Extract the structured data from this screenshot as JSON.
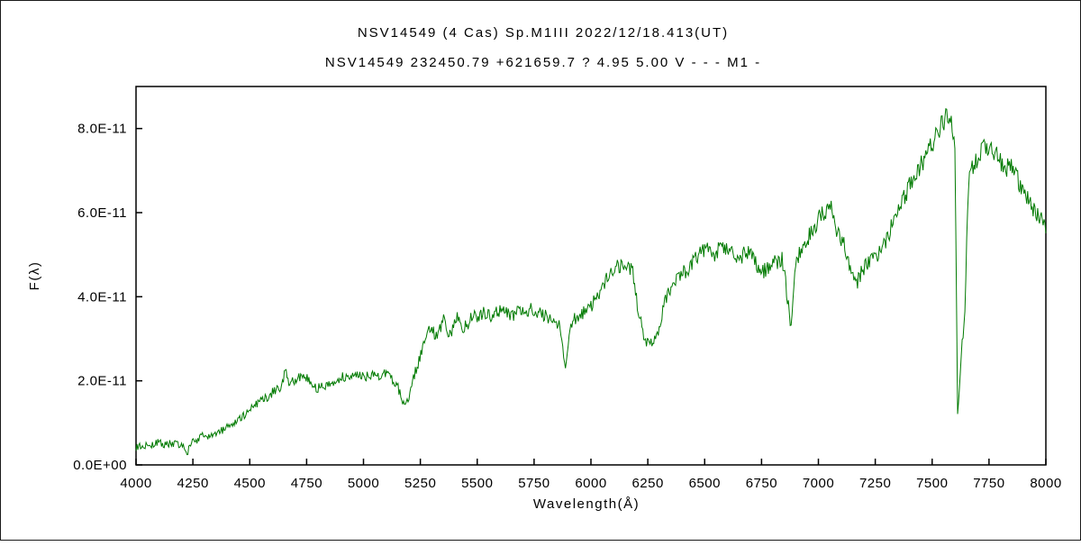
{
  "page": {
    "background": "#ffffff",
    "border_color": "#1a1a1a"
  },
  "header": {
    "title_line1": "NSV14549 (4 Cas)   Sp.M1III   2022/12/18.413(UT)",
    "title_line2": "NSV14549 232450.79 +621659.7 ? 4.95 5.00 V - - - M1 -"
  },
  "chart_data": {
    "type": "line",
    "title": "NSV14549 (4 Cas) Sp.M1III 2022/12/18.413(UT)",
    "xlabel": "Wavelength(Å)",
    "ylabel": "F(λ)",
    "xlim": [
      4000,
      8000
    ],
    "ylim": [
      0,
      9
    ],
    "flux_unit_scale": "1e-11",
    "x_ticks": [
      4000,
      4250,
      4500,
      4750,
      5000,
      5250,
      5500,
      5750,
      6000,
      6250,
      6500,
      6750,
      7000,
      7250,
      7500,
      7750,
      8000
    ],
    "y_ticks": [
      0,
      2,
      4,
      6,
      8
    ],
    "y_tick_labels": [
      "0.0E+00",
      "2.0E-11",
      "4.0E-11",
      "6.0E-11",
      "8.0E-11"
    ],
    "grid": false,
    "legend": "none",
    "line_color": "#007a00",
    "axis_color": "#000000",
    "noise_seed": 20221218,
    "noise_amplitude": 0.24,
    "sample_step_angstrom": 4,
    "series": [
      {
        "name": "NSV14549 flux spectrum",
        "points": [
          [
            4000,
            0.42
          ],
          [
            4030,
            0.48
          ],
          [
            4060,
            0.44
          ],
          [
            4090,
            0.55
          ],
          [
            4120,
            0.48
          ],
          [
            4150,
            0.52
          ],
          [
            4180,
            0.5
          ],
          [
            4210,
            0.45
          ],
          [
            4225,
            0.26
          ],
          [
            4240,
            0.52
          ],
          [
            4270,
            0.6
          ],
          [
            4300,
            0.72
          ],
          [
            4330,
            0.68
          ],
          [
            4360,
            0.75
          ],
          [
            4400,
            0.92
          ],
          [
            4440,
            1.05
          ],
          [
            4480,
            1.22
          ],
          [
            4520,
            1.38
          ],
          [
            4560,
            1.55
          ],
          [
            4600,
            1.72
          ],
          [
            4640,
            1.88
          ],
          [
            4655,
            2.25
          ],
          [
            4670,
            1.95
          ],
          [
            4700,
            2.0
          ],
          [
            4730,
            2.1
          ],
          [
            4760,
            2.05
          ],
          [
            4790,
            1.8
          ],
          [
            4820,
            1.92
          ],
          [
            4850,
            1.88
          ],
          [
            4880,
            2.02
          ],
          [
            4910,
            2.1
          ],
          [
            4940,
            2.05
          ],
          [
            4970,
            2.12
          ],
          [
            5000,
            2.08
          ],
          [
            5030,
            2.15
          ],
          [
            5060,
            2.1
          ],
          [
            5090,
            2.18
          ],
          [
            5120,
            2.05
          ],
          [
            5150,
            1.9
          ],
          [
            5175,
            1.42
          ],
          [
            5200,
            1.6
          ],
          [
            5230,
            2.25
          ],
          [
            5260,
            2.8
          ],
          [
            5290,
            3.3
          ],
          [
            5320,
            3.05
          ],
          [
            5350,
            3.45
          ],
          [
            5380,
            3.1
          ],
          [
            5410,
            3.5
          ],
          [
            5440,
            3.25
          ],
          [
            5470,
            3.45
          ],
          [
            5500,
            3.55
          ],
          [
            5530,
            3.62
          ],
          [
            5560,
            3.5
          ],
          [
            5590,
            3.68
          ],
          [
            5620,
            3.72
          ],
          [
            5650,
            3.55
          ],
          [
            5680,
            3.62
          ],
          [
            5710,
            3.58
          ],
          [
            5740,
            3.7
          ],
          [
            5770,
            3.62
          ],
          [
            5800,
            3.55
          ],
          [
            5830,
            3.42
          ],
          [
            5860,
            3.3
          ],
          [
            5890,
            2.35
          ],
          [
            5915,
            3.42
          ],
          [
            5940,
            3.55
          ],
          [
            5970,
            3.62
          ],
          [
            6000,
            3.78
          ],
          [
            6030,
            4.05
          ],
          [
            6060,
            4.35
          ],
          [
            6090,
            4.62
          ],
          [
            6120,
            4.72
          ],
          [
            6150,
            4.68
          ],
          [
            6180,
            4.72
          ],
          [
            6210,
            3.6
          ],
          [
            6240,
            2.95
          ],
          [
            6270,
            2.88
          ],
          [
            6300,
            3.25
          ],
          [
            6330,
            3.95
          ],
          [
            6360,
            4.35
          ],
          [
            6390,
            4.52
          ],
          [
            6420,
            4.62
          ],
          [
            6450,
            4.8
          ],
          [
            6480,
            5.02
          ],
          [
            6510,
            5.12
          ],
          [
            6540,
            4.95
          ],
          [
            6570,
            5.18
          ],
          [
            6600,
            5.15
          ],
          [
            6630,
            4.92
          ],
          [
            6660,
            4.95
          ],
          [
            6690,
            5.08
          ],
          [
            6720,
            4.88
          ],
          [
            6750,
            4.55
          ],
          [
            6780,
            4.7
          ],
          [
            6810,
            4.8
          ],
          [
            6840,
            4.9
          ],
          [
            6865,
            3.95
          ],
          [
            6880,
            3.25
          ],
          [
            6895,
            4.45
          ],
          [
            6910,
            4.95
          ],
          [
            6940,
            5.25
          ],
          [
            6970,
            5.55
          ],
          [
            7000,
            5.85
          ],
          [
            7030,
            6.0
          ],
          [
            7055,
            6.2
          ],
          [
            7080,
            5.5
          ],
          [
            7110,
            5.3
          ],
          [
            7140,
            4.7
          ],
          [
            7165,
            4.25
          ],
          [
            7190,
            4.6
          ],
          [
            7220,
            4.8
          ],
          [
            7250,
            4.9
          ],
          [
            7280,
            5.1
          ],
          [
            7310,
            5.5
          ],
          [
            7340,
            5.95
          ],
          [
            7370,
            6.3
          ],
          [
            7400,
            6.65
          ],
          [
            7430,
            6.9
          ],
          [
            7460,
            7.25
          ],
          [
            7490,
            7.6
          ],
          [
            7520,
            7.85
          ],
          [
            7545,
            8.1
          ],
          [
            7570,
            8.28
          ],
          [
            7585,
            8.15
          ],
          [
            7600,
            7.6
          ],
          [
            7612,
            1.15
          ],
          [
            7622,
            1.9
          ],
          [
            7632,
            3.05
          ],
          [
            7642,
            3.3
          ],
          [
            7652,
            5.2
          ],
          [
            7662,
            6.8
          ],
          [
            7680,
            7.1
          ],
          [
            7700,
            7.35
          ],
          [
            7725,
            7.5
          ],
          [
            7750,
            7.62
          ],
          [
            7775,
            7.4
          ],
          [
            7800,
            7.25
          ],
          [
            7825,
            7.05
          ],
          [
            7850,
            7.08
          ],
          [
            7875,
            6.8
          ],
          [
            7900,
            6.55
          ],
          [
            7925,
            6.35
          ],
          [
            7950,
            6.05
          ],
          [
            7975,
            5.85
          ],
          [
            8000,
            5.72
          ]
        ]
      }
    ]
  }
}
